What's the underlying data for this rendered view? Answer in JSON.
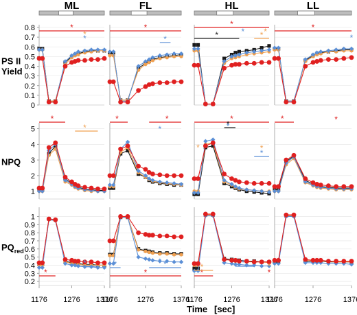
{
  "figure": {
    "xlabel": "Time",
    "xunit": "[sec]",
    "columns": [
      "ML",
      "FL",
      "HL",
      "LL"
    ],
    "rows": [
      {
        "key": "psii",
        "label_lines": [
          "PS II",
          "Yield"
        ],
        "ylim": [
          0,
          0.8
        ],
        "ticks": [
          "0",
          "0.1",
          "0.2",
          "0.3",
          "0.4",
          "0.5",
          "0.6",
          "0.7",
          "0.8"
        ]
      },
      {
        "key": "npq",
        "label_lines": [
          "NPQ"
        ],
        "ylim": [
          0.5,
          5.2
        ],
        "ticks": [
          "1",
          "2",
          "3",
          "4",
          "5"
        ]
      },
      {
        "key": "pq",
        "label_lines": [
          "PQ",
          "red"
        ],
        "ylim": [
          0.15,
          1.08
        ],
        "ticks": [
          "0.2",
          "0.3",
          "0.4",
          "0.5",
          "0.6",
          "0.7",
          "0.8",
          "0.9",
          "1"
        ]
      }
    ],
    "xticks": [
      "1176",
      "1276",
      "1376"
    ],
    "colors": {
      "black": "#1a1a1a",
      "blue": "#5b8fd6",
      "orange": "#f0a050",
      "red": "#e02020"
    },
    "stars": [
      "*"
    ]
  },
  "chart_data": {
    "type": "line",
    "x": [
      1176,
      1186,
      1206,
      1226,
      1256,
      1276,
      1286,
      1296,
      1316,
      1336,
      1356,
      1376
    ],
    "panels": [
      {
        "row": "psii",
        "col": "ML",
        "series": [
          {
            "color": "black",
            "values": [
              0.58,
              0.58,
              0.04,
              0.04,
              0.44,
              0.5,
              0.52,
              0.53,
              0.55,
              0.56,
              0.56,
              0.56
            ]
          },
          {
            "color": "blue",
            "values": [
              0.57,
              0.57,
              0.03,
              0.03,
              0.45,
              0.51,
              0.53,
              0.55,
              0.56,
              0.57,
              0.57,
              0.57
            ]
          },
          {
            "color": "orange",
            "values": [
              0.57,
              0.57,
              0.04,
              0.04,
              0.42,
              0.49,
              0.51,
              0.52,
              0.54,
              0.55,
              0.56,
              0.56
            ]
          },
          {
            "color": "red",
            "values": [
              0.48,
              0.48,
              0.03,
              0.03,
              0.4,
              0.44,
              0.45,
              0.46,
              0.46,
              0.47,
              0.47,
              0.48
            ]
          }
        ]
      },
      {
        "row": "psii",
        "col": "FL",
        "series": [
          {
            "color": "black",
            "values": [
              0.54,
              0.54,
              0.05,
              0.05,
              0.38,
              0.43,
              0.45,
              0.47,
              0.49,
              0.5,
              0.51,
              0.52
            ]
          },
          {
            "color": "blue",
            "values": [
              0.55,
              0.55,
              0.04,
              0.04,
              0.4,
              0.45,
              0.47,
              0.49,
              0.51,
              0.52,
              0.53,
              0.53
            ]
          },
          {
            "color": "orange",
            "values": [
              0.51,
              0.51,
              0.05,
              0.05,
              0.36,
              0.42,
              0.44,
              0.46,
              0.48,
              0.49,
              0.5,
              0.5
            ]
          },
          {
            "color": "red",
            "values": [
              0.24,
              0.24,
              0.03,
              0.03,
              0.15,
              0.19,
              0.21,
              0.22,
              0.23,
              0.23,
              0.24,
              0.24
            ]
          }
        ]
      },
      {
        "row": "psii",
        "col": "HL",
        "series": [
          {
            "color": "black",
            "values": [
              0.62,
              0.62,
              0.01,
              0.01,
              0.48,
              0.52,
              0.54,
              0.55,
              0.56,
              0.57,
              0.59,
              0.61
            ]
          },
          {
            "color": "blue",
            "values": [
              0.58,
              0.58,
              0.01,
              0.01,
              0.45,
              0.5,
              0.51,
              0.52,
              0.54,
              0.55,
              0.56,
              0.57
            ]
          },
          {
            "color": "orange",
            "values": [
              0.56,
              0.56,
              0.01,
              0.01,
              0.43,
              0.48,
              0.49,
              0.5,
              0.52,
              0.53,
              0.54,
              0.55
            ]
          },
          {
            "color": "red",
            "values": [
              0.41,
              0.41,
              0.01,
              0.01,
              0.38,
              0.41,
              0.42,
              0.42,
              0.43,
              0.43,
              0.44,
              0.44
            ]
          }
        ]
      },
      {
        "row": "psii",
        "col": "LL",
        "series": [
          {
            "color": "black",
            "values": [
              0.58,
              0.58,
              0.04,
              0.04,
              0.46,
              0.51,
              0.53,
              0.54,
              0.55,
              0.56,
              0.57,
              0.57
            ]
          },
          {
            "color": "blue",
            "values": [
              0.59,
              0.59,
              0.04,
              0.04,
              0.47,
              0.52,
              0.54,
              0.55,
              0.56,
              0.57,
              0.58,
              0.58
            ]
          },
          {
            "color": "orange",
            "values": [
              0.57,
              0.57,
              0.04,
              0.04,
              0.45,
              0.5,
              0.52,
              0.53,
              0.55,
              0.55,
              0.56,
              0.56
            ]
          },
          {
            "color": "red",
            "values": [
              0.48,
              0.48,
              0.03,
              0.03,
              0.4,
              0.44,
              0.45,
              0.46,
              0.47,
              0.47,
              0.48,
              0.49
            ]
          }
        ]
      },
      {
        "row": "npq",
        "col": "ML",
        "series": [
          {
            "color": "black",
            "values": [
              1.1,
              1.1,
              3.4,
              3.9,
              1.8,
              1.5,
              1.35,
              1.25,
              1.15,
              1.1,
              1.05,
              1.05
            ]
          },
          {
            "color": "blue",
            "values": [
              1.0,
              1.0,
              3.6,
              4.0,
              1.7,
              1.45,
              1.3,
              1.2,
              1.1,
              1.05,
              1.0,
              1.0
            ]
          },
          {
            "color": "orange",
            "values": [
              1.0,
              1.0,
              3.3,
              3.7,
              1.6,
              1.4,
              1.25,
              1.15,
              1.05,
              1.0,
              1.0,
              1.0
            ]
          },
          {
            "color": "red",
            "values": [
              1.2,
              1.2,
              3.8,
              4.1,
              1.9,
              1.6,
              1.45,
              1.35,
              1.25,
              1.2,
              1.15,
              1.15
            ]
          }
        ]
      },
      {
        "row": "npq",
        "col": "FL",
        "series": [
          {
            "color": "black",
            "values": [
              1.2,
              1.2,
              3.4,
              3.6,
              2.1,
              1.9,
              1.7,
              1.6,
              1.5,
              1.45,
              1.4,
              1.4
            ]
          },
          {
            "color": "blue",
            "values": [
              1.4,
              1.4,
              3.7,
              4.15,
              2.3,
              2.0,
              1.8,
              1.7,
              1.6,
              1.55,
              1.5,
              1.45
            ]
          },
          {
            "color": "orange",
            "values": [
              1.3,
              1.3,
              3.5,
              3.8,
              2.2,
              1.9,
              1.75,
              1.65,
              1.55,
              1.5,
              1.45,
              1.4
            ]
          },
          {
            "color": "red",
            "values": [
              2.0,
              2.0,
              3.7,
              3.9,
              2.6,
              2.4,
              2.2,
              2.1,
              2.05,
              2.0,
              2.0,
              2.0
            ]
          }
        ]
      },
      {
        "row": "npq",
        "col": "HL",
        "series": [
          {
            "color": "black",
            "values": [
              0.8,
              0.8,
              3.8,
              3.9,
              1.5,
              1.3,
              1.2,
              1.1,
              1.0,
              0.95,
              0.9,
              0.85
            ]
          },
          {
            "color": "blue",
            "values": [
              0.9,
              0.9,
              4.2,
              4.3,
              1.7,
              1.45,
              1.3,
              1.2,
              1.1,
              1.05,
              1.0,
              0.95
            ]
          },
          {
            "color": "orange",
            "values": [
              1.0,
              1.0,
              4.0,
              4.1,
              1.6,
              1.4,
              1.25,
              1.15,
              1.1,
              1.05,
              1.0,
              1.0
            ]
          },
          {
            "color": "red",
            "values": [
              1.8,
              1.8,
              3.9,
              4.1,
              2.1,
              1.8,
              1.7,
              1.6,
              1.55,
              1.5,
              1.5,
              1.5
            ]
          }
        ]
      },
      {
        "row": "npq",
        "col": "LL",
        "series": [
          {
            "color": "black",
            "values": [
              1.1,
              1.1,
              2.9,
              3.25,
              1.7,
              1.45,
              1.35,
              1.3,
              1.25,
              1.2,
              1.2,
              1.2
            ]
          },
          {
            "color": "blue",
            "values": [
              1.0,
              1.0,
              2.8,
              3.2,
              1.6,
              1.4,
              1.3,
              1.25,
              1.2,
              1.15,
              1.15,
              1.15
            ]
          },
          {
            "color": "orange",
            "values": [
              1.0,
              1.0,
              2.7,
              3.1,
              1.55,
              1.35,
              1.25,
              1.2,
              1.15,
              1.1,
              1.1,
              1.1
            ]
          },
          {
            "color": "red",
            "values": [
              1.3,
              1.3,
              3.0,
              3.3,
              1.8,
              1.55,
              1.45,
              1.4,
              1.35,
              1.3,
              1.3,
              1.3
            ]
          }
        ]
      },
      {
        "row": "pq",
        "col": "ML",
        "series": [
          {
            "color": "black",
            "values": [
              0.41,
              0.41,
              0.97,
              0.96,
              0.45,
              0.43,
              0.42,
              0.42,
              0.41,
              0.41,
              0.4,
              0.4
            ]
          },
          {
            "color": "blue",
            "values": [
              0.37,
              0.37,
              0.96,
              0.95,
              0.42,
              0.4,
              0.4,
              0.39,
              0.38,
              0.38,
              0.37,
              0.37
            ]
          },
          {
            "color": "orange",
            "values": [
              0.4,
              0.4,
              0.96,
              0.95,
              0.44,
              0.42,
              0.41,
              0.41,
              0.4,
              0.4,
              0.4,
              0.4
            ]
          },
          {
            "color": "red",
            "values": [
              0.43,
              0.43,
              0.97,
              0.96,
              0.47,
              0.46,
              0.45,
              0.45,
              0.44,
              0.44,
              0.43,
              0.43
            ]
          }
        ]
      },
      {
        "row": "pq",
        "col": "FL",
        "series": [
          {
            "color": "black",
            "values": [
              0.53,
              0.53,
              0.99,
              0.99,
              0.6,
              0.58,
              0.57,
              0.56,
              0.55,
              0.55,
              0.54,
              0.54
            ]
          },
          {
            "color": "blue",
            "values": [
              0.42,
              0.42,
              0.99,
              0.99,
              0.5,
              0.48,
              0.47,
              0.46,
              0.45,
              0.45,
              0.44,
              0.44
            ]
          },
          {
            "color": "orange",
            "values": [
              0.52,
              0.52,
              0.99,
              0.99,
              0.59,
              0.57,
              0.56,
              0.55,
              0.54,
              0.54,
              0.53,
              0.53
            ]
          },
          {
            "color": "red",
            "values": [
              0.7,
              0.7,
              1.0,
              1.0,
              0.8,
              0.78,
              0.77,
              0.77,
              0.76,
              0.76,
              0.75,
              0.75
            ]
          }
        ]
      },
      {
        "row": "pq",
        "col": "HL",
        "series": [
          {
            "color": "black",
            "values": [
              0.36,
              0.36,
              1.02,
              1.02,
              0.48,
              0.47,
              0.46,
              0.46,
              0.45,
              0.45,
              0.44,
              0.44
            ]
          },
          {
            "color": "blue",
            "values": [
              0.33,
              0.33,
              1.01,
              1.01,
              0.43,
              0.42,
              0.41,
              0.41,
              0.4,
              0.4,
              0.39,
              0.39
            ]
          },
          {
            "color": "orange",
            "values": [
              0.4,
              0.4,
              1.02,
              1.02,
              0.47,
              0.46,
              0.45,
              0.45,
              0.44,
              0.44,
              0.44,
              0.43
            ]
          },
          {
            "color": "red",
            "values": [
              0.42,
              0.42,
              1.03,
              1.03,
              0.47,
              0.46,
              0.46,
              0.45,
              0.45,
              0.44,
              0.44,
              0.44
            ]
          }
        ]
      },
      {
        "row": "pq",
        "col": "LL",
        "series": [
          {
            "color": "black",
            "values": [
              0.44,
              0.44,
              1.01,
              1.01,
              0.45,
              0.45,
              0.45,
              0.45,
              0.44,
              0.44,
              0.44,
              0.44
            ]
          },
          {
            "color": "blue",
            "values": [
              0.42,
              0.42,
              1.0,
              1.0,
              0.43,
              0.43,
              0.43,
              0.43,
              0.42,
              0.42,
              0.42,
              0.41
            ]
          },
          {
            "color": "orange",
            "values": [
              0.45,
              0.45,
              1.01,
              1.01,
              0.46,
              0.46,
              0.45,
              0.45,
              0.45,
              0.44,
              0.44,
              0.44
            ]
          },
          {
            "color": "red",
            "values": [
              0.46,
              0.46,
              1.02,
              1.02,
              0.47,
              0.46,
              0.46,
              0.46,
              0.45,
              0.45,
              0.45,
              0.45
            ]
          }
        ]
      }
    ]
  }
}
